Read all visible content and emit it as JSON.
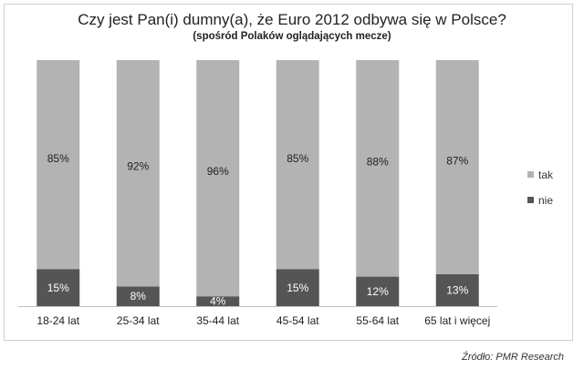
{
  "chart_data": {
    "type": "bar",
    "stacked": true,
    "percent_stacked": true,
    "title": "Czy jest Pan(i) dumny(a), że Euro 2012 odbywa się w Polsce?",
    "subtitle": "(spośród Polaków oglądających mecze)",
    "categories": [
      "18-24 lat",
      "25-34 lat",
      "35-44 lat",
      "45-54 lat",
      "55-64 lat",
      "65 lat i więcej"
    ],
    "series": [
      {
        "name": "nie",
        "values": [
          15,
          8,
          4,
          15,
          12,
          13
        ],
        "labels": [
          "15%",
          "8%",
          "4%",
          "15%",
          "12%",
          "13%"
        ],
        "color": "#555555",
        "label_color": "#ffffff"
      },
      {
        "name": "tak",
        "values": [
          85,
          92,
          96,
          85,
          88,
          87
        ],
        "labels": [
          "85%",
          "92%",
          "96%",
          "85%",
          "88%",
          "87%"
        ],
        "color": "#b3b3b3",
        "label_color": "#222222"
      }
    ],
    "ylim": [
      0,
      100
    ],
    "legend_position": "right",
    "legend_order": [
      "tak",
      "nie"
    ],
    "grid": false
  },
  "source": "Źródło: PMR Research"
}
